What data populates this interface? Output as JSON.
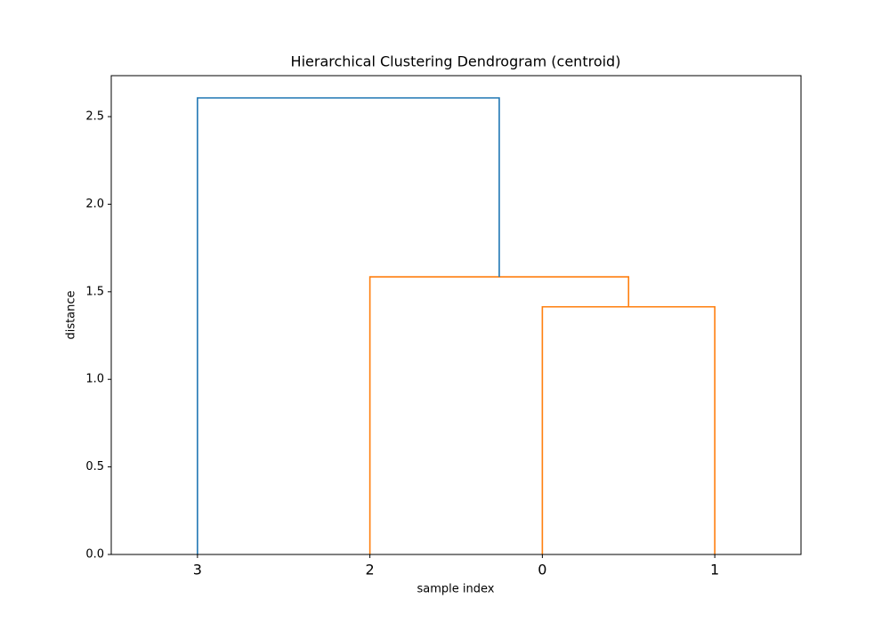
{
  "chart_data": {
    "type": "dendrogram",
    "title": "Hierarchical Clustering Dendrogram (centroid)",
    "xlabel": "sample index",
    "ylabel": "distance",
    "xlim": [
      0,
      40
    ],
    "ylim": [
      0,
      2.734
    ],
    "xticks": [
      {
        "value": 5,
        "label": "3"
      },
      {
        "value": 15,
        "label": "2"
      },
      {
        "value": 25,
        "label": "0"
      },
      {
        "value": 35,
        "label": "1"
      }
    ],
    "yticks": [
      {
        "value": 0,
        "label": "0.0"
      },
      0.5,
      {
        "value": 1,
        "label": "1.0"
      },
      1.5,
      {
        "value": 2,
        "label": "2.0"
      },
      2.5
    ],
    "links": [
      {
        "x": [
          25,
          25,
          35,
          35
        ],
        "y": [
          0,
          1.414,
          1.414,
          0
        ],
        "color": "#ff7f0e"
      },
      {
        "x": [
          15,
          15,
          30,
          30
        ],
        "y": [
          0,
          1.585,
          1.585,
          1.414
        ],
        "color": "#ff7f0e"
      },
      {
        "x": [
          5,
          5,
          22.5,
          22.5
        ],
        "y": [
          0,
          2.607,
          2.607,
          1.585
        ],
        "color": "#1f77b4"
      }
    ]
  }
}
